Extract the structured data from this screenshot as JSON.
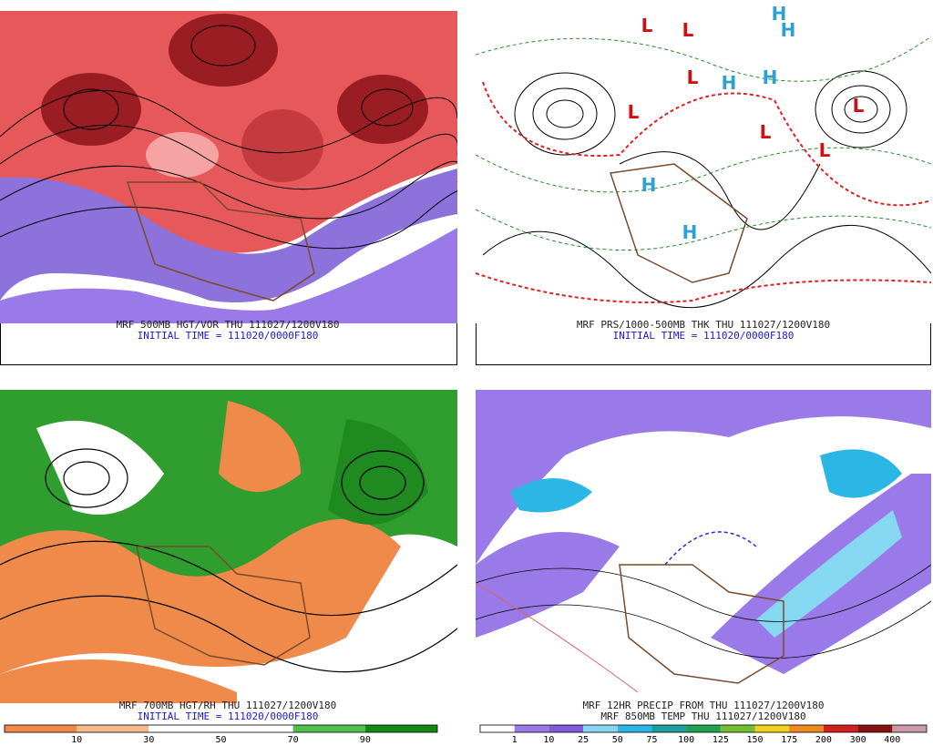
{
  "panels": [
    {
      "caption": "MRF 500MB HGT/VOR THU 111027/1200V180",
      "subcaption": "INITIAL TIME = 111020/0000F180"
    },
    {
      "caption": "MRF PRS/1000-500MB THK THU 111027/1200V180",
      "subcaption": "INITIAL TIME = 111020/0000F180",
      "symbols": [
        "L",
        "L",
        "L",
        "L",
        "L",
        "L",
        "L",
        "H",
        "H",
        "H",
        "H",
        "H",
        "H"
      ]
    },
    {
      "caption": "MRF 700MB HGT/RH THU 111027/1200V180",
      "subcaption": "INITIAL TIME = 111020/0000F180",
      "colorbar": {
        "ticks": [
          10,
          30,
          50,
          70,
          90
        ],
        "colors": [
          "#f08a4b",
          "#f6b98a",
          "#ffffff",
          "#ffffff",
          "#4fc04f",
          "#138a13"
        ]
      }
    },
    {
      "caption": "MRF 12HR PRECIP FROM THU 111027/1200V180",
      "subcaption": "MRF 850MB TEMP THU 111027/1200V180",
      "colorbar": {
        "ticks": [
          1,
          10,
          25,
          50,
          75,
          100,
          125,
          150,
          175,
          200,
          300,
          400
        ],
        "colors": [
          "#ffffff",
          "#9a7ae8",
          "#7e5fd8",
          "#86d8f2",
          "#2cb6e6",
          "#1aa0a0",
          "#20a050",
          "#70c030",
          "#f0d020",
          "#f08a20",
          "#d02020",
          "#8a1010",
          "#c89aa8"
        ]
      }
    }
  ]
}
